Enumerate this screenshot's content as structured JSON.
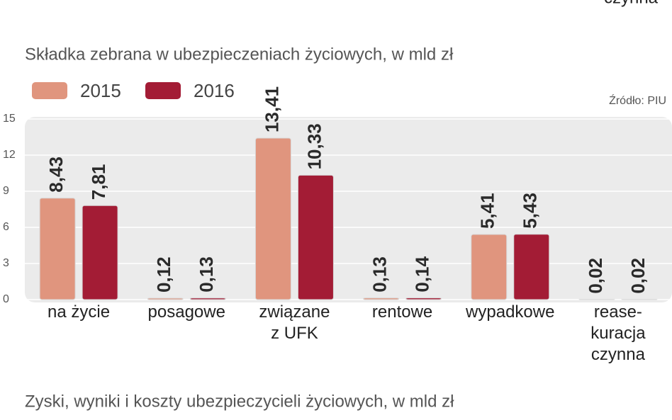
{
  "top_fragment": "czynna",
  "chart_data": {
    "type": "bar",
    "title": "Składka zebrana w ubezpieczeniach życiowych, w mld zł",
    "source": "Źródło: PIU",
    "categories": [
      "na życie",
      "posagowe",
      "związane\nz UFK",
      "rentowe",
      "wypadkowe",
      "rease-\nkuracja\nczynna"
    ],
    "series": [
      {
        "name": "2015",
        "color": "#e0957e",
        "values": [
          8.43,
          0.12,
          13.41,
          0.13,
          5.41,
          0.02
        ],
        "value_labels": [
          "8,43",
          "0,12",
          "13,41",
          "0,13",
          "5,41",
          "0,02"
        ]
      },
      {
        "name": "2016",
        "color": "#a31c35",
        "values": [
          7.81,
          0.13,
          10.33,
          0.14,
          5.43,
          0.02
        ],
        "value_labels": [
          "7,81",
          "0,13",
          "10,33",
          "0,14",
          "5,43",
          "0,02"
        ]
      }
    ],
    "ylim": [
      0,
      15
    ],
    "yticks": [
      0,
      3,
      6,
      9,
      12,
      15
    ],
    "grid": true
  },
  "next_title": "Zyski, wyniki i koszty ubezpieczycieli życiowych, w mld zł"
}
